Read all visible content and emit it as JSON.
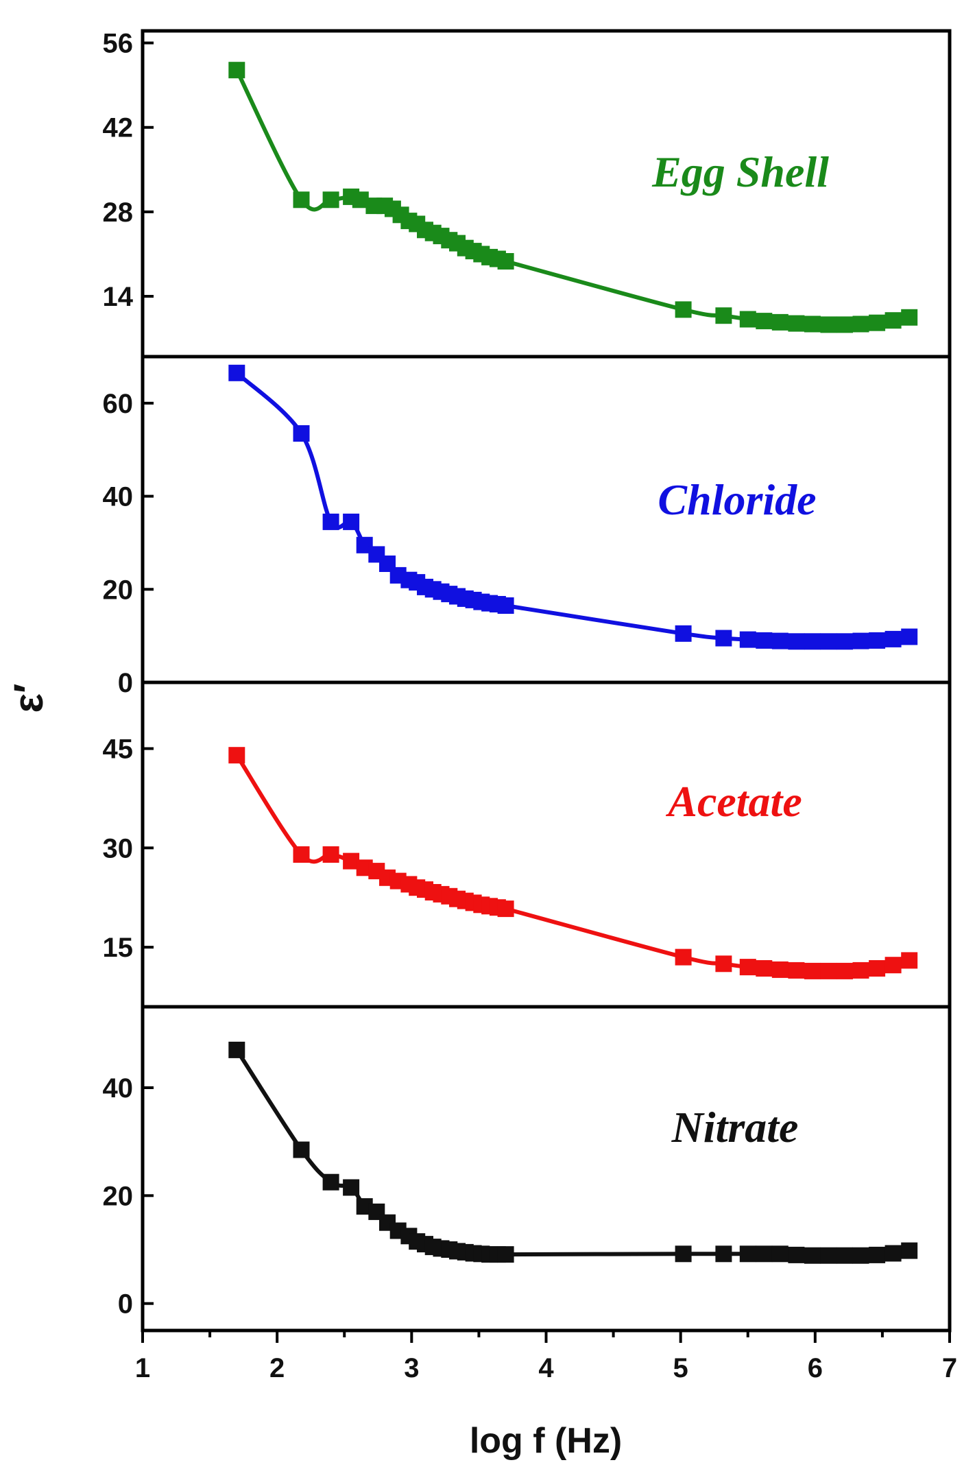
{
  "chart_data": {
    "type": "line",
    "xlabel": "log f (Hz)",
    "ylabel": "ε′",
    "xlim": [
      1,
      7
    ],
    "x_ticks": [
      1,
      2,
      3,
      4,
      5,
      6,
      7
    ],
    "x_minor_ticks": [
      1.5,
      2.5,
      3.5,
      4.5,
      5.5,
      6.5
    ],
    "markers": "filled-square",
    "series": [
      {
        "name": "Egg Shell",
        "label": "Egg Shell",
        "color": "#1a8a1a",
        "ylim": [
          4,
          58
        ],
        "yticks": [
          14,
          28,
          42,
          56
        ],
        "x": [
          1.7,
          2.18,
          2.4,
          2.55,
          2.62,
          2.72,
          2.8,
          2.86,
          2.92,
          2.98,
          3.04,
          3.1,
          3.16,
          3.22,
          3.28,
          3.34,
          3.4,
          3.46,
          3.52,
          3.58,
          3.64,
          3.7,
          5.02,
          5.32,
          5.5,
          5.62,
          5.74,
          5.86,
          5.98,
          6.1,
          6.22,
          6.34,
          6.46,
          6.58,
          6.7
        ],
        "y": [
          51.5,
          30,
          30,
          30.5,
          30,
          29,
          29,
          28.5,
          27.5,
          26.5,
          26,
          25,
          24.5,
          24,
          23.3,
          22.8,
          22,
          21.5,
          21,
          20.5,
          20.2,
          19.8,
          11.8,
          10.8,
          10.2,
          9.9,
          9.7,
          9.5,
          9.4,
          9.3,
          9.3,
          9.4,
          9.6,
          10,
          10.5
        ]
      },
      {
        "name": "Chloride",
        "label": "Chloride",
        "color": "#1010e0",
        "ylim": [
          0,
          70
        ],
        "yticks": [
          0,
          20,
          40,
          60
        ],
        "x": [
          1.7,
          2.18,
          2.4,
          2.55,
          2.65,
          2.74,
          2.82,
          2.9,
          2.98,
          3.04,
          3.1,
          3.16,
          3.22,
          3.28,
          3.34,
          3.4,
          3.46,
          3.52,
          3.58,
          3.64,
          3.7,
          5.02,
          5.32,
          5.5,
          5.62,
          5.74,
          5.86,
          5.98,
          6.1,
          6.22,
          6.34,
          6.46,
          6.58,
          6.7
        ],
        "y": [
          66.5,
          53.5,
          34.5,
          34.5,
          29.5,
          27.5,
          25.5,
          23,
          22,
          21.5,
          20.5,
          20,
          19.5,
          19,
          18.5,
          18,
          17.7,
          17.3,
          17,
          16.8,
          16.5,
          10.5,
          9.5,
          9.2,
          9,
          8.9,
          8.8,
          8.8,
          8.8,
          8.8,
          8.9,
          9,
          9.3,
          9.8
        ]
      },
      {
        "name": "Acetate",
        "label": "Acetate",
        "color": "#ee1111",
        "ylim": [
          6,
          55
        ],
        "yticks": [
          15,
          30,
          45
        ],
        "x": [
          1.7,
          2.18,
          2.4,
          2.55,
          2.65,
          2.74,
          2.82,
          2.9,
          2.98,
          3.04,
          3.1,
          3.16,
          3.22,
          3.28,
          3.34,
          3.4,
          3.46,
          3.52,
          3.58,
          3.64,
          3.7,
          5.02,
          5.32,
          5.5,
          5.62,
          5.74,
          5.86,
          5.98,
          6.1,
          6.22,
          6.34,
          6.46,
          6.58,
          6.7
        ],
        "y": [
          44,
          29,
          29,
          28,
          27,
          26.5,
          25.5,
          25,
          24.5,
          24,
          23.7,
          23.3,
          23,
          22.7,
          22.3,
          22,
          21.7,
          21.4,
          21.2,
          21,
          20.8,
          13.5,
          12.5,
          12,
          11.8,
          11.6,
          11.5,
          11.4,
          11.4,
          11.4,
          11.5,
          11.8,
          12.3,
          13
        ]
      },
      {
        "name": "Nitrate",
        "label": "Nitrate",
        "color": "#111111",
        "ylim": [
          -5,
          55
        ],
        "yticks": [
          0,
          20,
          40
        ],
        "x": [
          1.7,
          2.18,
          2.4,
          2.55,
          2.65,
          2.74,
          2.82,
          2.9,
          2.98,
          3.04,
          3.1,
          3.16,
          3.22,
          3.28,
          3.34,
          3.4,
          3.46,
          3.52,
          3.58,
          3.64,
          3.7,
          5.02,
          5.32,
          5.5,
          5.62,
          5.74,
          5.86,
          5.98,
          6.1,
          6.22,
          6.34,
          6.46,
          6.58,
          6.7
        ],
        "y": [
          47,
          28.5,
          22.5,
          21.5,
          18,
          17,
          15,
          13.5,
          12.5,
          11.5,
          11,
          10.5,
          10.2,
          10,
          9.7,
          9.5,
          9.3,
          9.2,
          9.1,
          9.1,
          9.1,
          9.2,
          9.2,
          9.2,
          9.2,
          9.2,
          9,
          8.9,
          8.9,
          8.9,
          8.9,
          9,
          9.3,
          9.8
        ]
      }
    ]
  }
}
